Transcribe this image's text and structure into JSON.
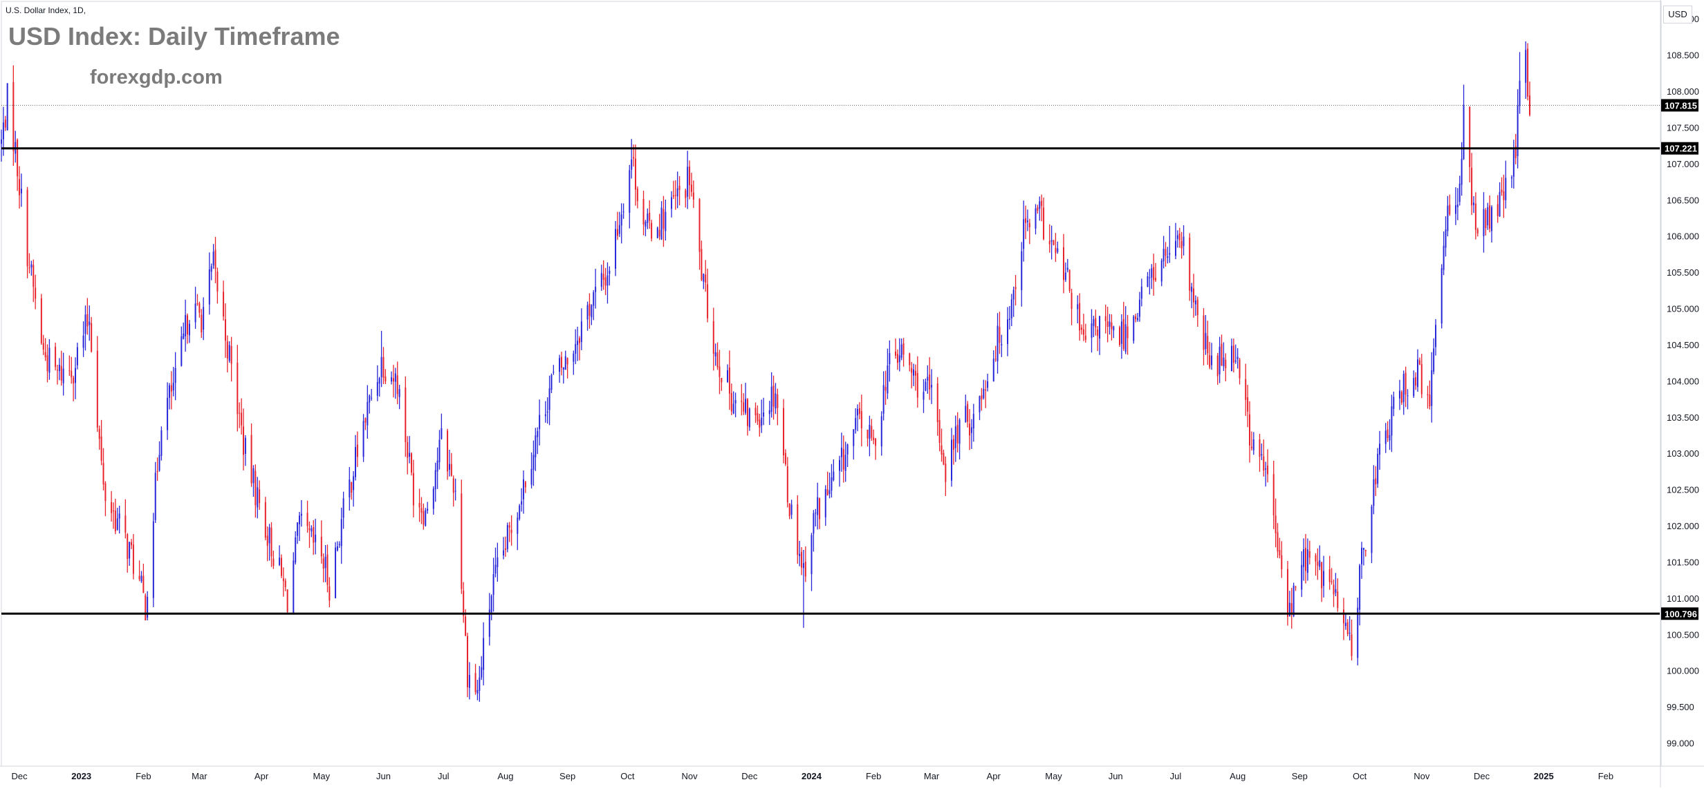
{
  "header": {
    "symbol_title": "U.S. Dollar Index, 1D,",
    "title": "USD Index: Daily Timeframe",
    "watermark": "forexgdp.com",
    "currency": "USD"
  },
  "colors": {
    "up": "#2727d9",
    "down": "#e8232c",
    "level_line": "#000000",
    "axis_text": "#131722",
    "border": "#d1d4dc",
    "price_label_bg": "#000000"
  },
  "chart_data": {
    "type": "candlestick",
    "title": "USD Index: Daily Timeframe",
    "ylim": [
      98.7,
      109.25
    ],
    "y_ticks": [
      "109.000",
      "108.500",
      "108.000",
      "107.500",
      "107.000",
      "106.500",
      "106.000",
      "105.500",
      "105.000",
      "104.500",
      "104.000",
      "103.500",
      "103.000",
      "102.500",
      "102.000",
      "101.500",
      "101.000",
      "100.500",
      "100.000",
      "99.500",
      "99.000"
    ],
    "x_labels": [
      {
        "label": "Dec",
        "date": "2022-12-01"
      },
      {
        "label": "2023",
        "date": "2023-01-01"
      },
      {
        "label": "Feb",
        "date": "2023-02-01"
      },
      {
        "label": "Mar",
        "date": "2023-03-01"
      },
      {
        "label": "Apr",
        "date": "2023-04-01"
      },
      {
        "label": "May",
        "date": "2023-05-01"
      },
      {
        "label": "Jun",
        "date": "2023-06-01"
      },
      {
        "label": "Jul",
        "date": "2023-07-01"
      },
      {
        "label": "Aug",
        "date": "2023-08-01"
      },
      {
        "label": "Sep",
        "date": "2023-09-01"
      },
      {
        "label": "Oct",
        "date": "2023-10-01"
      },
      {
        "label": "Nov",
        "date": "2023-11-01"
      },
      {
        "label": "Dec",
        "date": "2023-12-01"
      },
      {
        "label": "2024",
        "date": "2024-01-01"
      },
      {
        "label": "Feb",
        "date": "2024-02-01"
      },
      {
        "label": "Mar",
        "date": "2024-03-01"
      },
      {
        "label": "Apr",
        "date": "2024-04-01"
      },
      {
        "label": "May",
        "date": "2024-05-01"
      },
      {
        "label": "Jun",
        "date": "2024-06-01"
      },
      {
        "label": "Jul",
        "date": "2024-07-01"
      },
      {
        "label": "Aug",
        "date": "2024-08-01"
      },
      {
        "label": "Sep",
        "date": "2024-09-01"
      },
      {
        "label": "Oct",
        "date": "2024-10-01"
      },
      {
        "label": "Nov",
        "date": "2024-11-01"
      },
      {
        "label": "Dec",
        "date": "2024-12-01"
      },
      {
        "label": "2025",
        "date": "2025-01-01"
      },
      {
        "label": "Feb",
        "date": "2025-02-01"
      }
    ],
    "x_range": [
      "2022-11-22",
      "2025-02-28"
    ],
    "levels": [
      {
        "name": "resistance",
        "value": 107.221,
        "label": "107.221"
      },
      {
        "name": "support",
        "value": 100.796,
        "label": "100.796"
      }
    ],
    "last_price": {
      "value": 107.815,
      "label": "107.815"
    },
    "close_path": [
      [
        "2022-11-22",
        107.3
      ],
      [
        "2022-11-25",
        107.9
      ],
      [
        "2022-11-29",
        107.2
      ],
      [
        "2022-12-05",
        105.8
      ],
      [
        "2022-12-13",
        104.4
      ],
      [
        "2022-12-20",
        104.1
      ],
      [
        "2022-12-28",
        104.2
      ],
      [
        "2023-01-05",
        104.9
      ],
      [
        "2023-01-12",
        102.5
      ],
      [
        "2023-01-20",
        102.0
      ],
      [
        "2023-01-26",
        101.6
      ],
      [
        "2023-02-02",
        100.9
      ],
      [
        "2023-02-10",
        103.5
      ],
      [
        "2023-02-17",
        104.0
      ],
      [
        "2023-02-24",
        105.0
      ],
      [
        "2023-03-02",
        104.9
      ],
      [
        "2023-03-08",
        105.6
      ],
      [
        "2023-03-15",
        104.5
      ],
      [
        "2023-03-24",
        103.0
      ],
      [
        "2023-04-03",
        102.0
      ],
      [
        "2023-04-14",
        101.0
      ],
      [
        "2023-04-20",
        102.0
      ],
      [
        "2023-05-01",
        101.6
      ],
      [
        "2023-05-05",
        101.2
      ],
      [
        "2023-05-12",
        102.2
      ],
      [
        "2023-05-22",
        103.4
      ],
      [
        "2023-05-31",
        104.3
      ],
      [
        "2023-06-08",
        104.0
      ],
      [
        "2023-06-16",
        102.5
      ],
      [
        "2023-06-22",
        102.2
      ],
      [
        "2023-06-30",
        103.2
      ],
      [
        "2023-07-07",
        102.5
      ],
      [
        "2023-07-13",
        100.0
      ],
      [
        "2023-07-18",
        99.7
      ],
      [
        "2023-07-25",
        101.1
      ],
      [
        "2023-08-04",
        102.0
      ],
      [
        "2023-08-14",
        103.0
      ],
      [
        "2023-08-24",
        104.0
      ],
      [
        "2023-09-01",
        104.3
      ],
      [
        "2023-09-11",
        105.0
      ],
      [
        "2023-09-21",
        105.5
      ],
      [
        "2023-09-28",
        106.4
      ],
      [
        "2023-10-03",
        107.1
      ],
      [
        "2023-10-10",
        106.1
      ],
      [
        "2023-10-17",
        106.2
      ],
      [
        "2023-10-25",
        106.5
      ],
      [
        "2023-11-01",
        106.8
      ],
      [
        "2023-11-08",
        105.3
      ],
      [
        "2023-11-14",
        104.4
      ],
      [
        "2023-11-22",
        103.8
      ],
      [
        "2023-11-30",
        103.5
      ],
      [
        "2023-12-07",
        103.6
      ],
      [
        "2023-12-14",
        103.9
      ],
      [
        "2023-12-21",
        102.3
      ],
      [
        "2023-12-28",
        101.4
      ],
      [
        "2024-01-03",
        102.2
      ],
      [
        "2024-01-10",
        102.5
      ],
      [
        "2024-01-18",
        103.0
      ],
      [
        "2024-01-25",
        103.5
      ],
      [
        "2024-02-01",
        103.1
      ],
      [
        "2024-02-08",
        104.2
      ],
      [
        "2024-02-15",
        104.4
      ],
      [
        "2024-02-22",
        104.0
      ],
      [
        "2024-03-01",
        103.8
      ],
      [
        "2024-03-08",
        102.8
      ],
      [
        "2024-03-15",
        103.4
      ],
      [
        "2024-03-22",
        103.5
      ],
      [
        "2024-04-01",
        104.4
      ],
      [
        "2024-04-10",
        105.1
      ],
      [
        "2024-04-16",
        106.1
      ],
      [
        "2024-04-24",
        106.3
      ],
      [
        "2024-05-01",
        105.8
      ],
      [
        "2024-05-09",
        105.3
      ],
      [
        "2024-05-16",
        104.5
      ],
      [
        "2024-05-24",
        104.8
      ],
      [
        "2024-05-31",
        104.6
      ],
      [
        "2024-06-07",
        104.7
      ],
      [
        "2024-06-14",
        105.2
      ],
      [
        "2024-06-20",
        105.5
      ],
      [
        "2024-06-28",
        105.8
      ],
      [
        "2024-07-05",
        105.8
      ],
      [
        "2024-07-12",
        104.8
      ],
      [
        "2024-07-19",
        104.2
      ],
      [
        "2024-07-26",
        104.4
      ],
      [
        "2024-08-01",
        104.4
      ],
      [
        "2024-08-08",
        103.1
      ],
      [
        "2024-08-15",
        102.8
      ],
      [
        "2024-08-22",
        101.5
      ],
      [
        "2024-08-27",
        100.8
      ],
      [
        "2024-09-03",
        101.6
      ],
      [
        "2024-09-10",
        101.4
      ],
      [
        "2024-09-17",
        101.2
      ],
      [
        "2024-09-24",
        100.5
      ],
      [
        "2024-09-27",
        100.4
      ],
      [
        "2024-10-03",
        101.7
      ],
      [
        "2024-10-10",
        102.9
      ],
      [
        "2024-10-17",
        103.5
      ],
      [
        "2024-10-24",
        104.0
      ],
      [
        "2024-10-31",
        104.1
      ],
      [
        "2024-11-05",
        103.6
      ],
      [
        "2024-11-08",
        104.8
      ],
      [
        "2024-11-14",
        106.5
      ],
      [
        "2024-11-20",
        106.6
      ],
      [
        "2024-11-22",
        107.6
      ],
      [
        "2024-11-27",
        106.3
      ],
      [
        "2024-12-04",
        106.2
      ],
      [
        "2024-12-11",
        106.5
      ],
      [
        "2024-12-18",
        107.1
      ],
      [
        "2024-12-20",
        108.2
      ],
      [
        "2024-12-23",
        108.4
      ],
      [
        "2024-12-25",
        107.8
      ]
    ],
    "notable_extremes": [
      {
        "date": "2022-11-25",
        "high": 108.0
      },
      {
        "date": "2023-02-02",
        "low": 100.8
      },
      {
        "date": "2023-03-08",
        "high": 105.9
      },
      {
        "date": "2023-04-14",
        "low": 100.8
      },
      {
        "date": "2023-05-31",
        "high": 104.7
      },
      {
        "date": "2023-07-18",
        "low": 99.6
      },
      {
        "date": "2023-10-03",
        "high": 107.35
      },
      {
        "date": "2023-12-28",
        "low": 100.6
      },
      {
        "date": "2024-04-16",
        "high": 106.5
      },
      {
        "date": "2024-06-28",
        "high": 106.15
      },
      {
        "date": "2024-09-27",
        "low": 100.15
      },
      {
        "date": "2024-11-22",
        "high": 108.1
      },
      {
        "date": "2024-12-20",
        "high": 108.55
      }
    ]
  }
}
